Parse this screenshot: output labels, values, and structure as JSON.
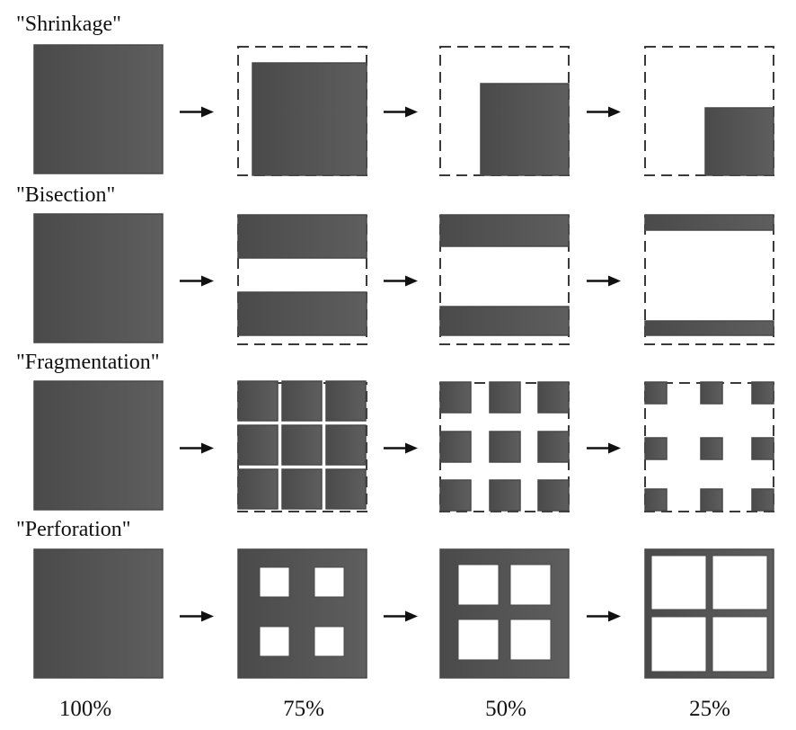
{
  "header_text": "",
  "colors": {
    "fill": "#5b5b5b",
    "fill_dark": "#484848",
    "dash": "#3a3a3a",
    "text": "#111111",
    "background": "#ffffff"
  },
  "rows": [
    {
      "label": "\"Shrinkage\""
    },
    {
      "label": "\"Bisection\""
    },
    {
      "label": "\"Fragmentation\""
    },
    {
      "label": "\"Perforation\""
    }
  ],
  "percentages": [
    "100%",
    "75%",
    "50%",
    "25%"
  ]
}
